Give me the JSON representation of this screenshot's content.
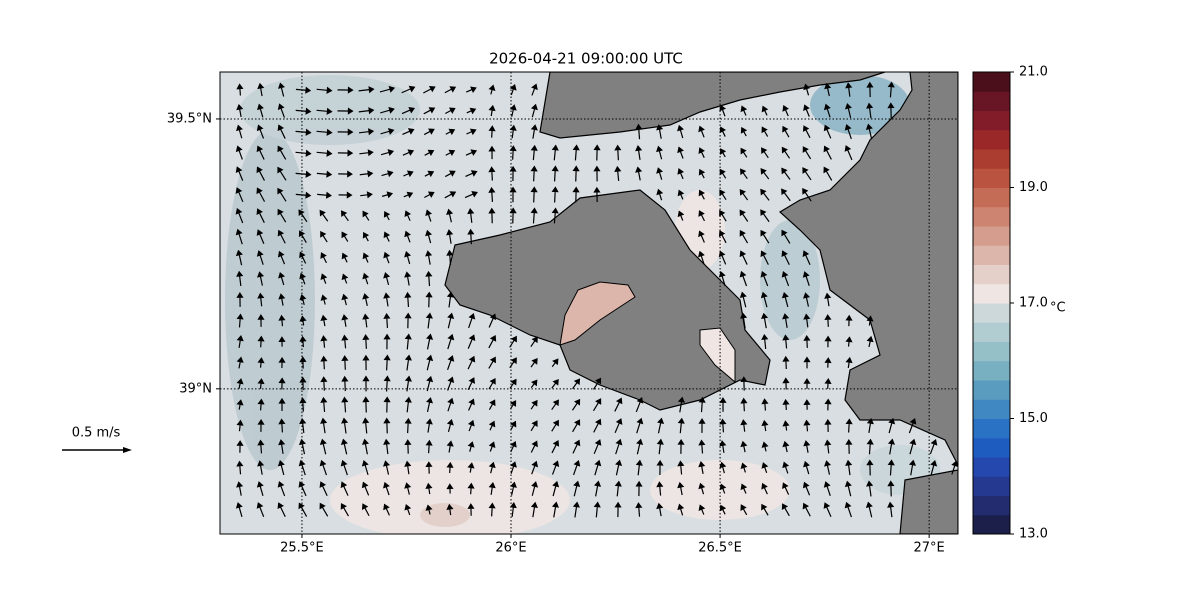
{
  "title": "2026-04-21 09:00:00 UTC",
  "map": {
    "xlim": [
      25.304,
      27.069
    ],
    "ylim": [
      38.731,
      39.587
    ],
    "xticks": [
      {
        "value": 25.5,
        "label": "25.5°E"
      },
      {
        "value": 26,
        "label": "26°E"
      },
      {
        "value": 26.5,
        "label": "26.5°E"
      },
      {
        "value": 27,
        "label": "27°E"
      }
    ],
    "yticks": [
      {
        "value": 39,
        "label": "39°N"
      },
      {
        "value": 39.5,
        "label": "39.5°N"
      }
    ],
    "grid": true
  },
  "colorbar": {
    "vlim": [
      13,
      21
    ],
    "ticks": [
      {
        "value": 13,
        "label": "13.0"
      },
      {
        "value": 15,
        "label": "15.0"
      },
      {
        "value": 17,
        "label": "17.0"
      },
      {
        "value": 19,
        "label": "19.0"
      },
      {
        "value": 21,
        "label": "21.0"
      }
    ],
    "unit": "°C",
    "colors": [
      "#1b1f4a",
      "#232c6e",
      "#24398f",
      "#2448ad",
      "#1f5cc0",
      "#2a72c4",
      "#3f88c2",
      "#5a9cc0",
      "#78afc1",
      "#96c0c7",
      "#b2cdd1",
      "#cdd8db",
      "#efe6e4",
      "#e5cfc9",
      "#dcb6ab",
      "#d59d8d",
      "#cd8571",
      "#c56c56",
      "#ba533f",
      "#ab3c30",
      "#9a2828",
      "#821c28",
      "#681526",
      "#4b0f1c"
    ]
  },
  "scale": {
    "value": 0.5,
    "label": "0.5 m/s"
  }
}
